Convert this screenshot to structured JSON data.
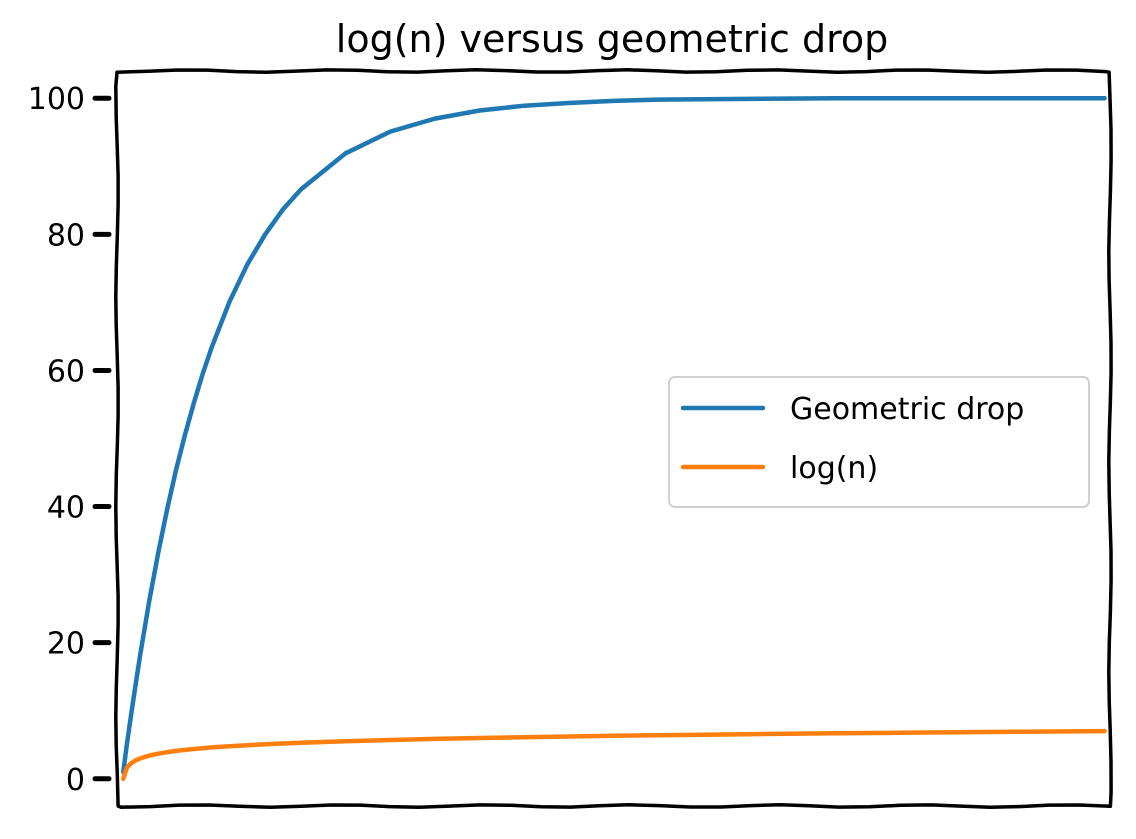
{
  "chart_data": {
    "type": "line",
    "title": "log(n) versus geometric drop",
    "xlabel": "",
    "ylabel": "",
    "x_ticks_shown": false,
    "grid": false,
    "legend_position": "center-right",
    "ylim": [
      -4,
      104
    ],
    "xlim": [
      -6,
      1106
    ],
    "yticks": [
      0,
      20,
      40,
      60,
      80,
      100
    ],
    "yticklabels": [
      "0",
      "20",
      "40",
      "60",
      "80",
      "100"
    ],
    "x": [
      1,
      5,
      10,
      15,
      20,
      30,
      40,
      50,
      60,
      70,
      80,
      90,
      100,
      120,
      140,
      160,
      180,
      200,
      250,
      300,
      350,
      400,
      450,
      500,
      550,
      600,
      700,
      800,
      900,
      1000,
      1100
    ],
    "series": [
      {
        "name": "Geometric drop",
        "color": "#1f77b4",
        "values": [
          1.0,
          5.0,
          9.6,
          14.0,
          18.2,
          26.0,
          33.1,
          39.5,
          45.3,
          50.5,
          55.2,
          59.5,
          63.4,
          70.1,
          75.6,
          80.0,
          83.7,
          86.6,
          91.9,
          95.1,
          97.0,
          98.2,
          98.9,
          99.3,
          99.6,
          99.8,
          99.9,
          100.0,
          100.0,
          100.0,
          100.0
        ]
      },
      {
        "name": "log(n)",
        "color": "#ff7f0e",
        "values": [
          0.0,
          1.61,
          2.3,
          2.71,
          3.0,
          3.4,
          3.69,
          3.91,
          4.09,
          4.25,
          4.38,
          4.5,
          4.61,
          4.79,
          4.94,
          5.08,
          5.19,
          5.3,
          5.52,
          5.7,
          5.86,
          5.99,
          6.11,
          6.21,
          6.31,
          6.4,
          6.55,
          6.68,
          6.8,
          6.91,
          7.0
        ]
      }
    ]
  }
}
